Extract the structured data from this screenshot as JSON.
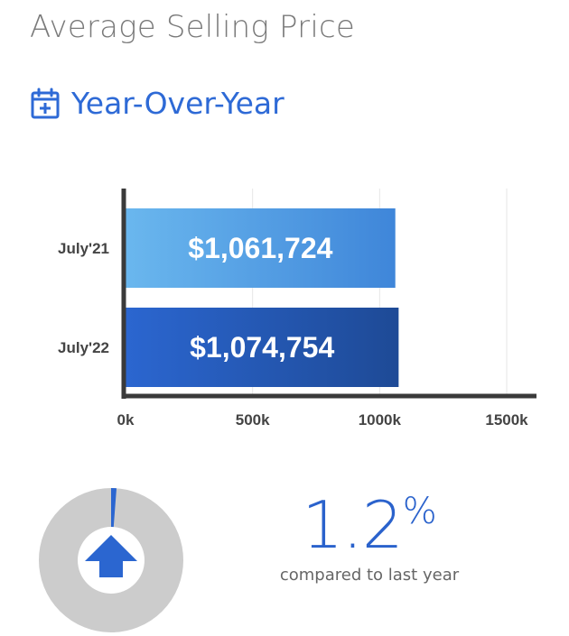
{
  "page": {
    "title": "Average Selling Price",
    "section_title": "Year-Over-Year",
    "section_icon": "calendar-plus-icon"
  },
  "colors": {
    "accent": "#2e6ad6",
    "bar_2021_start": "#6ab7ee",
    "bar_2021_end": "#3f86d9",
    "bar_2022_start": "#2b66d0",
    "bar_2022_end": "#1e4a96",
    "axis": "#3a3a3a",
    "grid": "#e6e6e6",
    "donut_track": "#cccccc",
    "donut_arrow": "#2b66d0"
  },
  "chart_data": {
    "type": "bar",
    "orientation": "horizontal",
    "categories": [
      "July'21",
      "July'22"
    ],
    "values": [
      1061724,
      1074754
    ],
    "data_labels": [
      "$1,061,724",
      "$1,074,754"
    ],
    "xlim": [
      0,
      1500000
    ],
    "x_ticks": [
      0,
      500000,
      1000000,
      1500000
    ],
    "x_tick_labels": [
      "0k",
      "500k",
      "1000k",
      "1500k"
    ],
    "grid": true
  },
  "summary": {
    "change_value": "1.2",
    "change_unit": "%",
    "change_fraction": 0.012,
    "direction": "up",
    "direction_icon": "up-arrow-icon",
    "caption": "compared to last year"
  }
}
